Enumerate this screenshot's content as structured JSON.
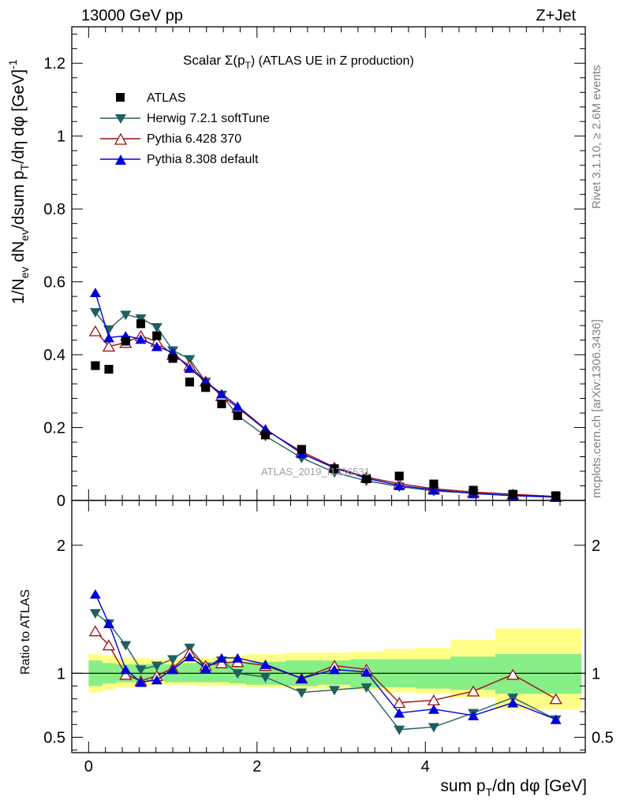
{
  "header": {
    "left": "13000 GeV pp",
    "right": "Z+Jet"
  },
  "side": {
    "rivet": "Rivet 3.1.10, ≥ 2.6M events",
    "mcplots": "mcplots.cern.ch [arXiv:1306.3436]"
  },
  "watermark": "ATLAS_2019_I1736531",
  "chart_data": [
    {
      "type": "line",
      "title": "Scalar Σ(p_T) (ATLAS UE in Z production)",
      "title_main": "Scalar Σ(p",
      "title_sub": "T",
      "title_tail": ") (ATLAS UE in Z production)",
      "ylabel": "1/N_ev dN_ev/dsum p_T/dη dφ [GeV]^-1",
      "ylabel_parts": [
        "1/N",
        "ev",
        " dN",
        "ev",
        "/dsum p",
        "T",
        "/dη dφ  [GeV]",
        "-1"
      ],
      "xlim": [
        -0.2,
        5.9
      ],
      "ylim": [
        0,
        1.3
      ],
      "yticks": [
        0,
        0.2,
        0.4,
        0.6,
        0.8,
        1,
        1.2
      ],
      "ytick_labels": [
        "0",
        "0.2",
        "0.4",
        "0.6",
        "0.8",
        "1",
        "1.2"
      ],
      "x": [
        0.08,
        0.24,
        0.44,
        0.62,
        0.81,
        1.0,
        1.2,
        1.39,
        1.58,
        1.77,
        2.1,
        2.53,
        2.92,
        3.3,
        3.69,
        4.1,
        4.57,
        5.04,
        5.55
      ],
      "series": [
        {
          "name": "ATLAS",
          "color": "#000000",
          "marker": "square",
          "values": [
            0.37,
            0.36,
            0.437,
            0.485,
            0.452,
            0.39,
            0.325,
            0.31,
            0.265,
            0.233,
            0.18,
            0.14,
            0.087,
            0.06,
            0.067,
            0.045,
            0.028,
            0.017,
            0.013
          ]
        },
        {
          "name": "Herwig 7.2.1 softTune",
          "color": "#1f6060",
          "marker": "tri-down",
          "values": [
            0.517,
            0.47,
            0.51,
            0.5,
            0.476,
            0.412,
            0.388,
            0.326,
            0.29,
            0.233,
            0.177,
            0.117,
            0.077,
            0.054,
            0.038,
            0.026,
            0.02,
            0.014,
            0.01
          ]
        },
        {
          "name": "Pythia 6.428 370",
          "color": "#9b1010",
          "marker": "tri-up-open",
          "values": [
            0.465,
            0.423,
            0.433,
            0.452,
            0.436,
            0.4,
            0.37,
            0.327,
            0.287,
            0.255,
            0.194,
            0.134,
            0.091,
            0.064,
            0.046,
            0.032,
            0.023,
            0.017,
            0.011
          ]
        },
        {
          "name": "Pythia 8.308 default",
          "color": "#0000dd",
          "marker": "tri-up",
          "values": [
            0.571,
            0.447,
            0.452,
            0.443,
            0.423,
            0.406,
            0.363,
            0.326,
            0.293,
            0.259,
            0.196,
            0.129,
            0.089,
            0.061,
            0.041,
            0.029,
            0.019,
            0.013,
            0.009
          ]
        }
      ]
    },
    {
      "type": "line",
      "ylabel": "Ratio to ATLAS",
      "xlabel": "sum p_T/dη dφ [GeV]",
      "xlabel_main": "sum p",
      "xlabel_sub": "T",
      "xlabel_tail": "/dη dφ [GeV]",
      "xlim": [
        -0.2,
        5.9
      ],
      "ylim": [
        0.38,
        2.35
      ],
      "yticks": [
        0.5,
        1,
        2
      ],
      "ytick_labels": [
        "0.5",
        "1",
        "2"
      ],
      "xticks": [
        0,
        2,
        4
      ],
      "xtick_labels": [
        "0",
        "2",
        "4"
      ],
      "bins": [
        0,
        0.16,
        0.32,
        0.53,
        0.71,
        0.9,
        1.1,
        1.29,
        1.48,
        1.67,
        1.87,
        2.34,
        2.72,
        3.11,
        3.5,
        3.89,
        4.3,
        4.83,
        5.26,
        5.85
      ],
      "band_inner": [
        [
          0.9,
          1.1
        ],
        [
          0.92,
          1.08
        ],
        [
          0.93,
          1.07
        ],
        [
          0.93,
          1.07
        ],
        [
          0.94,
          1.07
        ],
        [
          0.93,
          1.07
        ],
        [
          0.93,
          1.08
        ],
        [
          0.93,
          1.09
        ],
        [
          0.93,
          1.08
        ],
        [
          0.92,
          1.09
        ],
        [
          0.91,
          1.09
        ],
        [
          0.9,
          1.1
        ],
        [
          0.91,
          1.1
        ],
        [
          0.89,
          1.11
        ],
        [
          0.89,
          1.11
        ],
        [
          0.88,
          1.11
        ],
        [
          0.87,
          1.13
        ],
        [
          0.84,
          1.15
        ],
        [
          0.84,
          1.15
        ]
      ],
      "band_outer": [
        [
          0.85,
          1.15
        ],
        [
          0.87,
          1.14
        ],
        [
          0.89,
          1.12
        ],
        [
          0.9,
          1.12
        ],
        [
          0.91,
          1.11
        ],
        [
          0.91,
          1.11
        ],
        [
          0.91,
          1.12
        ],
        [
          0.9,
          1.12
        ],
        [
          0.9,
          1.13
        ],
        [
          0.9,
          1.14
        ],
        [
          0.89,
          1.15
        ],
        [
          0.88,
          1.16
        ],
        [
          0.88,
          1.16
        ],
        [
          0.87,
          1.17
        ],
        [
          0.85,
          1.19
        ],
        [
          0.84,
          1.2
        ],
        [
          0.81,
          1.26
        ],
        [
          0.72,
          1.35
        ],
        [
          0.72,
          1.35
        ]
      ],
      "x": [
        0.08,
        0.24,
        0.44,
        0.62,
        0.81,
        1.0,
        1.2,
        1.39,
        1.58,
        1.77,
        2.1,
        2.53,
        2.92,
        3.3,
        3.69,
        4.1,
        4.57,
        5.04,
        5.55
      ],
      "series": [
        {
          "name": "Herwig 7.2.1 softTune",
          "color": "#1f6060",
          "marker": "tri-down",
          "values": [
            1.47,
            1.39,
            1.22,
            1.03,
            1.06,
            1.11,
            1.2,
            1.05,
            1.1,
            1.0,
            0.97,
            0.85,
            0.87,
            0.89,
            0.56,
            0.58,
            0.69,
            0.81,
            0.64
          ]
        },
        {
          "name": "Pythia 6.428 370",
          "color": "#9b1010",
          "marker": "tri-up-open",
          "values": [
            1.33,
            1.22,
            0.99,
            0.94,
            0.98,
            1.04,
            1.16,
            1.06,
            1.08,
            1.09,
            1.06,
            0.96,
            1.06,
            1.03,
            0.77,
            0.79,
            0.86,
            0.99,
            0.8
          ]
        },
        {
          "name": "Pythia 8.308 default",
          "color": "#0000dd",
          "marker": "tri-up",
          "values": [
            1.62,
            1.39,
            1.03,
            0.93,
            0.95,
            1.03,
            1.13,
            1.04,
            1.12,
            1.12,
            1.07,
            0.96,
            1.03,
            1.01,
            0.69,
            0.72,
            0.67,
            0.77,
            0.64
          ]
        }
      ]
    }
  ]
}
